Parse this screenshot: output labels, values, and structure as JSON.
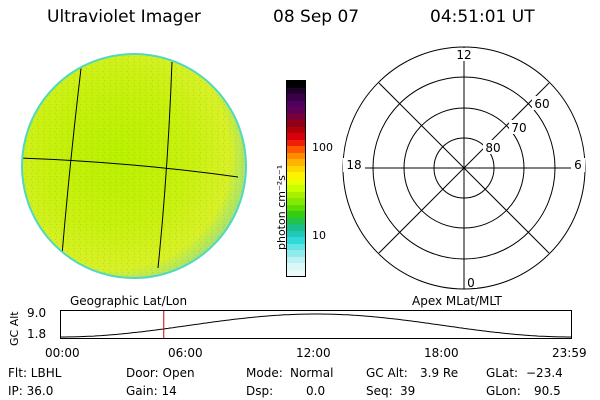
{
  "header": {
    "instrument": "Ultraviolet Imager",
    "date": "08 Sep 07",
    "time": "04:51:01 UT"
  },
  "colorbar": {
    "label": "photon cm⁻²s⁻¹",
    "ticks": [
      "100",
      "10"
    ],
    "scale": "log",
    "colors": [
      "#000000",
      "#22002e",
      "#3a0049",
      "#50005e",
      "#620055",
      "#7a0039",
      "#900019",
      "#b00008",
      "#d8000a",
      "#f02008",
      "#ff5a00",
      "#ff8c00",
      "#ffb400",
      "#ffd700",
      "#fff200",
      "#e8ff00",
      "#c8ff00",
      "#a8f000",
      "#84e800",
      "#5cdc00",
      "#34cc14",
      "#20c448",
      "#18c088",
      "#20c8b8",
      "#30d8d8",
      "#60e4e4",
      "#90ecec",
      "#bdf1f1",
      "#dbf6f6",
      "#eefafa"
    ]
  },
  "polar_plot": {
    "mlt_labels": [
      "12",
      "18",
      "6",
      "0"
    ],
    "lat_labels": [
      "60",
      "70",
      "80"
    ]
  },
  "geo_caption": "Geographic Lat/Lon",
  "apex_caption": "Apex MLat/MLT",
  "orbit_plot": {
    "ylabel": "GC Alt",
    "ytick_top": "9.0",
    "ytick_bottom": "1.8",
    "xticks": [
      "00:00",
      "06:00",
      "12:00",
      "18:00",
      "23:59"
    ],
    "marker_color": "#c80000",
    "marker_time_hours": 4.85
  },
  "info": {
    "flt": "Flt: LBHL",
    "ip": "IP: 36.0",
    "door": "Door: Open",
    "gain": "Gain: 14",
    "mode_label": "Mode:",
    "mode_value": "Normal",
    "dsp_label": "Dsp:",
    "dsp_value": "0.0",
    "gcalt_label": "GC Alt:",
    "gcalt_value": "3.9 Re",
    "seq_label": "Seq:",
    "seq_value": "39",
    "glat_label": "GLat:",
    "glat_value": "−23.4",
    "glon_label": "GLon:",
    "glon_value": "90.5"
  }
}
